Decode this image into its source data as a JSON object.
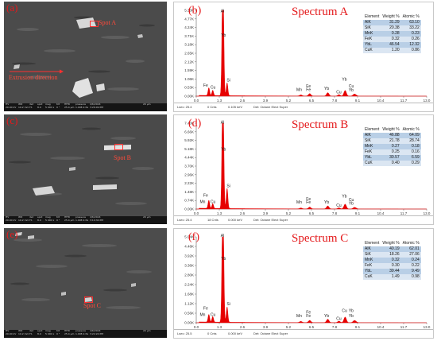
{
  "panels": [
    {
      "sem": {
        "label": "(a)",
        "spot_label": "Spot A",
        "extrusion_label": "Extrusion direction",
        "bar": [
          "HV",
          "WD",
          "det",
          "spot",
          "mag",
          "tilt",
          "HFW",
          "pressure",
          "4/6/2024",
          "20.00 kV",
          "10.2 mm",
          "T1",
          "8.0",
          "5 000 x",
          "0 °",
          "25.4 μm",
          "1.00E-4 Pa",
          "3:26:09 PM",
          "20 μm"
        ]
      },
      "eds": {
        "label": "(b)",
        "spectrum_title": "Spectrum A",
        "y_ticks": [
          "5.30K",
          "4.77K",
          "4.24K",
          "3.71K",
          "3.18K",
          "2.65K",
          "2.12K",
          "1.59K",
          "1.06K",
          "0.53K",
          "0.00K"
        ],
        "y_max": 5300,
        "peaks": [
          {
            "element": "Al",
            "kev": 1.49,
            "counts": 5090
          },
          {
            "element": "Yb",
            "kev": 1.52,
            "counts": 3560
          },
          {
            "element": "Si",
            "kev": 1.74,
            "counts": 800
          },
          {
            "element": "Fe",
            "kev": 0.71,
            "counts": 480
          },
          {
            "element": "Cu",
            "kev": 0.93,
            "counts": 330
          },
          {
            "element": "Mn",
            "kev": 5.9,
            "counts": 70
          },
          {
            "element": "Fe",
            "kev": 6.4,
            "counts": 150
          },
          {
            "element": "Yb",
            "kev": 7.42,
            "counts": 210
          },
          {
            "element": "Cu",
            "kev": 8.05,
            "counts": 90
          },
          {
            "element": "Yb",
            "kev": 8.4,
            "counts": 350
          },
          {
            "element": "Cu",
            "kev": 8.9,
            "counts": 100
          },
          {
            "element": "Yb",
            "kev": 9.0,
            "counts": 60
          }
        ],
        "peak_labels": [
          {
            "text": "Al",
            "kev": 1.38,
            "counts": 5180
          },
          {
            "text": "Yb",
            "kev": 1.4,
            "counts": 3690
          },
          {
            "text": "Si",
            "kev": 1.72,
            "counts": 920
          },
          {
            "text": "Fe",
            "kev": 0.4,
            "counts": 590
          },
          {
            "text": "Cu",
            "kev": 0.8,
            "counts": 460
          },
          {
            "text": "Fe",
            "kev": 6.2,
            "counts": 550
          },
          {
            "text": "Mn",
            "kev": 5.65,
            "counts": 330
          },
          {
            "text": "Fe",
            "kev": 6.2,
            "counts": 330
          },
          {
            "text": "Yb",
            "kev": 7.22,
            "counts": 390
          },
          {
            "text": "Cu",
            "kev": 7.9,
            "counts": 170
          },
          {
            "text": "Yb",
            "kev": 8.22,
            "counts": 950
          },
          {
            "text": "Cu",
            "kev": 8.6,
            "counts": 530
          },
          {
            "text": "Yb",
            "kev": 8.6,
            "counts": 300
          }
        ],
        "table_header": [
          "Element",
          "Weight %",
          "Atomic %"
        ],
        "table": [
          [
            "AlK",
            "31.29",
            "63.10"
          ],
          [
            "SiK",
            "20.38",
            "33.22"
          ],
          [
            "MnK",
            "0.28",
            "0.23"
          ],
          [
            "FeK",
            "0.32",
            "0.26"
          ],
          [
            "YbL",
            "46.54",
            "12.32"
          ],
          [
            "CuK",
            "1.20",
            "0.86"
          ]
        ],
        "foot": {
          "lsec": "Lsec: 25.4",
          "cnts": "0 Cnts",
          "kev": "0.105 keV",
          "det": "Det: Octane Elect Super"
        }
      }
    },
    {
      "sem": {
        "label": "(c)",
        "spot_label": "Spot B",
        "bar": [
          "HV",
          "WD",
          "det",
          "spot",
          "mag",
          "tilt",
          "HFW",
          "pressure",
          "4/6/2024",
          "20.00 kV",
          "10.2 mm",
          "T1",
          "8.0",
          "5 000 x",
          "0 °",
          "25.4 μm",
          "1.00E-4 Pa",
          "3:10:34 PM",
          "20 μm"
        ]
      },
      "eds": {
        "label": "(d)",
        "spectrum_title": "Spectrum B",
        "y_ticks": [
          "7.40K",
          "6.66K",
          "5.92K",
          "5.18K",
          "4.44K",
          "3.70K",
          "2.96K",
          "2.22K",
          "1.48K",
          "0.74K",
          "0.00K"
        ],
        "y_max": 7400,
        "peaks": [
          {
            "element": "Al",
            "kev": 1.49,
            "counts": 7300
          },
          {
            "element": "Yb",
            "kev": 1.52,
            "counts": 4900
          },
          {
            "element": "Si",
            "kev": 1.74,
            "counts": 1750
          },
          {
            "element": "Fe",
            "kev": 0.71,
            "counts": 700
          },
          {
            "element": "Cu",
            "kev": 0.93,
            "counts": 420
          },
          {
            "element": "Mn",
            "kev": 5.9,
            "counts": 80
          },
          {
            "element": "Fe",
            "kev": 6.4,
            "counts": 160
          },
          {
            "element": "Yb",
            "kev": 7.42,
            "counts": 260
          },
          {
            "element": "Cu",
            "kev": 8.05,
            "counts": 100
          },
          {
            "element": "Yb",
            "kev": 8.4,
            "counts": 420
          },
          {
            "element": "Cu",
            "kev": 8.9,
            "counts": 110
          },
          {
            "element": "Yb",
            "kev": 9.0,
            "counts": 70
          }
        ],
        "peak_labels": [
          {
            "text": "Al",
            "kev": 1.38,
            "counts": 7380
          },
          {
            "text": "Yb",
            "kev": 1.4,
            "counts": 5050
          },
          {
            "text": "Si",
            "kev": 1.72,
            "counts": 1900
          },
          {
            "text": "Fe",
            "kev": 0.4,
            "counts": 1050
          },
          {
            "text": "Mn",
            "kev": 0.2,
            "counts": 520
          },
          {
            "text": "Cu",
            "kev": 0.8,
            "counts": 520
          },
          {
            "text": "Fe",
            "kev": 6.2,
            "counts": 760
          },
          {
            "text": "Mn",
            "kev": 5.65,
            "counts": 470
          },
          {
            "text": "Fe",
            "kev": 6.2,
            "counts": 470
          },
          {
            "text": "Yb",
            "kev": 7.22,
            "counts": 470
          },
          {
            "text": "Cu",
            "kev": 7.9,
            "counts": 190
          },
          {
            "text": "Yb",
            "kev": 8.22,
            "counts": 1000
          },
          {
            "text": "Cu",
            "kev": 8.6,
            "counts": 700
          },
          {
            "text": "Yb",
            "kev": 8.6,
            "counts": 380
          }
        ],
        "table_header": [
          "Element",
          "Weight %",
          "Atomic %"
        ],
        "table": [
          [
            "AlK",
            "46.88",
            "64.09"
          ],
          [
            "SiK",
            "21.78",
            "28.74"
          ],
          [
            "MnK",
            "0.27",
            "0.18"
          ],
          [
            "FeK",
            "0.25",
            "0.16"
          ],
          [
            "YbL",
            "30.57",
            "6.59"
          ],
          [
            "CuK",
            "0.40",
            "0.29"
          ]
        ],
        "foot": {
          "lsec": "Lsec: 25.4",
          "cnts": "18 Cnts",
          "kev": "0.000 keV",
          "det": "Det: Octane Elect Super"
        }
      }
    },
    {
      "sem": {
        "label": "(e)",
        "spot_label": "Spot C",
        "bar": [
          "HV",
          "WD",
          "det",
          "spot",
          "mag",
          "tilt",
          "HFW",
          "pressure",
          "4/6/2024",
          "20.00 kV",
          "10.2 mm",
          "T1",
          "8.0",
          "5 000 x",
          "0 °",
          "25.4 μm",
          "1.00E-4 Pa",
          "3:22:24 PM",
          "20 μm"
        ]
      },
      "eds": {
        "label": "(f)",
        "spectrum_title": "Spectrum C",
        "y_ticks": [
          "5.04K",
          "4.48K",
          "3.92K",
          "3.36K",
          "2.80K",
          "2.24K",
          "1.68K",
          "1.12K",
          "0.56K",
          "0.00K"
        ],
        "y_max": 5040,
        "peaks": [
          {
            "element": "Al",
            "kev": 1.49,
            "counts": 4950
          },
          {
            "element": "Yb",
            "kev": 1.52,
            "counts": 3550
          },
          {
            "element": "Si",
            "kev": 1.74,
            "counts": 900
          },
          {
            "element": "Fe",
            "kev": 0.71,
            "counts": 450
          },
          {
            "element": "Cu",
            "kev": 0.93,
            "counts": 330
          },
          {
            "element": "Mn",
            "kev": 5.9,
            "counts": 70
          },
          {
            "element": "Fe",
            "kev": 6.4,
            "counts": 130
          },
          {
            "element": "Yb",
            "kev": 7.42,
            "counts": 200
          },
          {
            "element": "Cu",
            "kev": 8.05,
            "counts": 90
          },
          {
            "element": "Yb",
            "kev": 8.4,
            "counts": 330
          },
          {
            "element": "Cu",
            "kev": 8.9,
            "counts": 100
          },
          {
            "element": "Yb",
            "kev": 9.0,
            "counts": 60
          }
        ],
        "peak_labels": [
          {
            "text": "Al",
            "kev": 1.38,
            "counts": 5040
          },
          {
            "text": "Yb",
            "kev": 1.4,
            "counts": 3680
          },
          {
            "text": "Si",
            "kev": 1.72,
            "counts": 1030
          },
          {
            "text": "Fe",
            "kev": 0.4,
            "counts": 760
          },
          {
            "text": "Mn",
            "kev": 0.2,
            "counts": 400
          },
          {
            "text": "Cu",
            "kev": 0.8,
            "counts": 400
          },
          {
            "text": "Fe",
            "kev": 6.2,
            "counts": 540
          },
          {
            "text": "Mn",
            "kev": 5.65,
            "counts": 330
          },
          {
            "text": "Fe",
            "kev": 6.2,
            "counts": 330
          },
          {
            "text": "Yb",
            "kev": 7.22,
            "counts": 330
          },
          {
            "text": "Cu",
            "kev": 7.9,
            "counts": 170
          },
          {
            "text": "Cu",
            "kev": 8.22,
            "counts": 620
          },
          {
            "text": "Yb",
            "kev": 8.6,
            "counts": 620
          },
          {
            "text": "Yb",
            "kev": 8.6,
            "counts": 330
          }
        ],
        "table_header": [
          "Element",
          "Weight %",
          "Atomic %"
        ],
        "table": [
          [
            "AlK",
            "40.19",
            "62.01"
          ],
          [
            "SiK",
            "18.26",
            "27.06"
          ],
          [
            "MnK",
            "0.32",
            "0.24"
          ],
          [
            "FeK",
            "0.30",
            "0.22"
          ],
          [
            "YbL",
            "39.44",
            "9.49"
          ],
          [
            "CuK",
            "1.49",
            "0.98"
          ]
        ],
        "foot": {
          "lsec": "Lsec: 25.5",
          "cnts": "0 Cnts",
          "kev": "0.000 keV",
          "det": "Det: Octane Elect Super"
        }
      }
    }
  ],
  "x_axis": {
    "min": 0,
    "max": 13,
    "ticks": [
      "0.0",
      "1.3",
      "2.6",
      "3.9",
      "5.2",
      "6.5",
      "7.8",
      "9.1",
      "10.4",
      "11.7",
      "13.0"
    ]
  },
  "colors": {
    "spectrum_fill": "#e60000",
    "label_red": "#e41a1c",
    "table_row": "#b9cfe6"
  }
}
